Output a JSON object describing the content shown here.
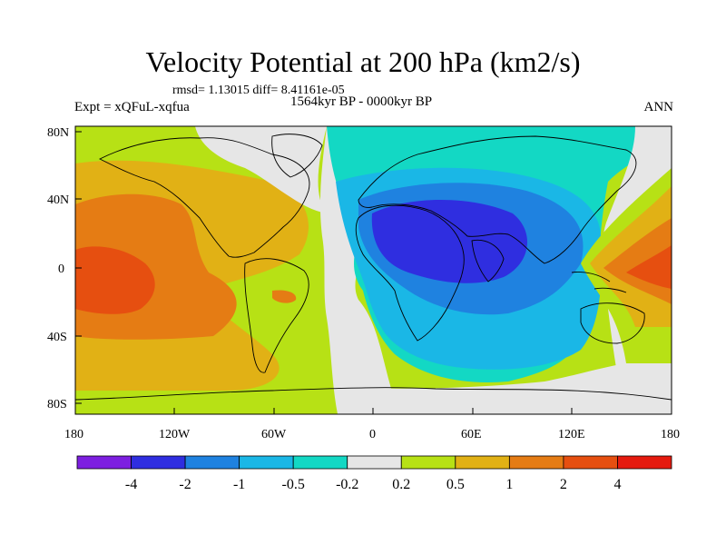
{
  "title": "Velocity Potential at 200 hPa (km2/s)",
  "stats": "rmsd= 1.13015 diff= 8.41161e-05",
  "left_label": "Expt = xQFuL-xqfua",
  "center_label": "1564kyr BP - 0000kyr BP",
  "right_label": "ANN",
  "lat_ticks": [
    "80N",
    "40N",
    "0",
    "40S",
    "80S"
  ],
  "lon_ticks": [
    "180",
    "120W",
    "60W",
    "0",
    "60E",
    "120E",
    "180"
  ],
  "colorbar": {
    "colors": [
      "#7d1fe0",
      "#2f2ee0",
      "#1f82e0",
      "#1ab7e6",
      "#13d8c4",
      "#e6e6e6",
      "#b7e115",
      "#e1b115",
      "#e57c14",
      "#e64f10",
      "#e51a0f"
    ],
    "labels": [
      "-4",
      "-2",
      "-1",
      "-0.5",
      "-0.2",
      "0.2",
      "0.5",
      "1",
      "2",
      "4"
    ]
  }
}
